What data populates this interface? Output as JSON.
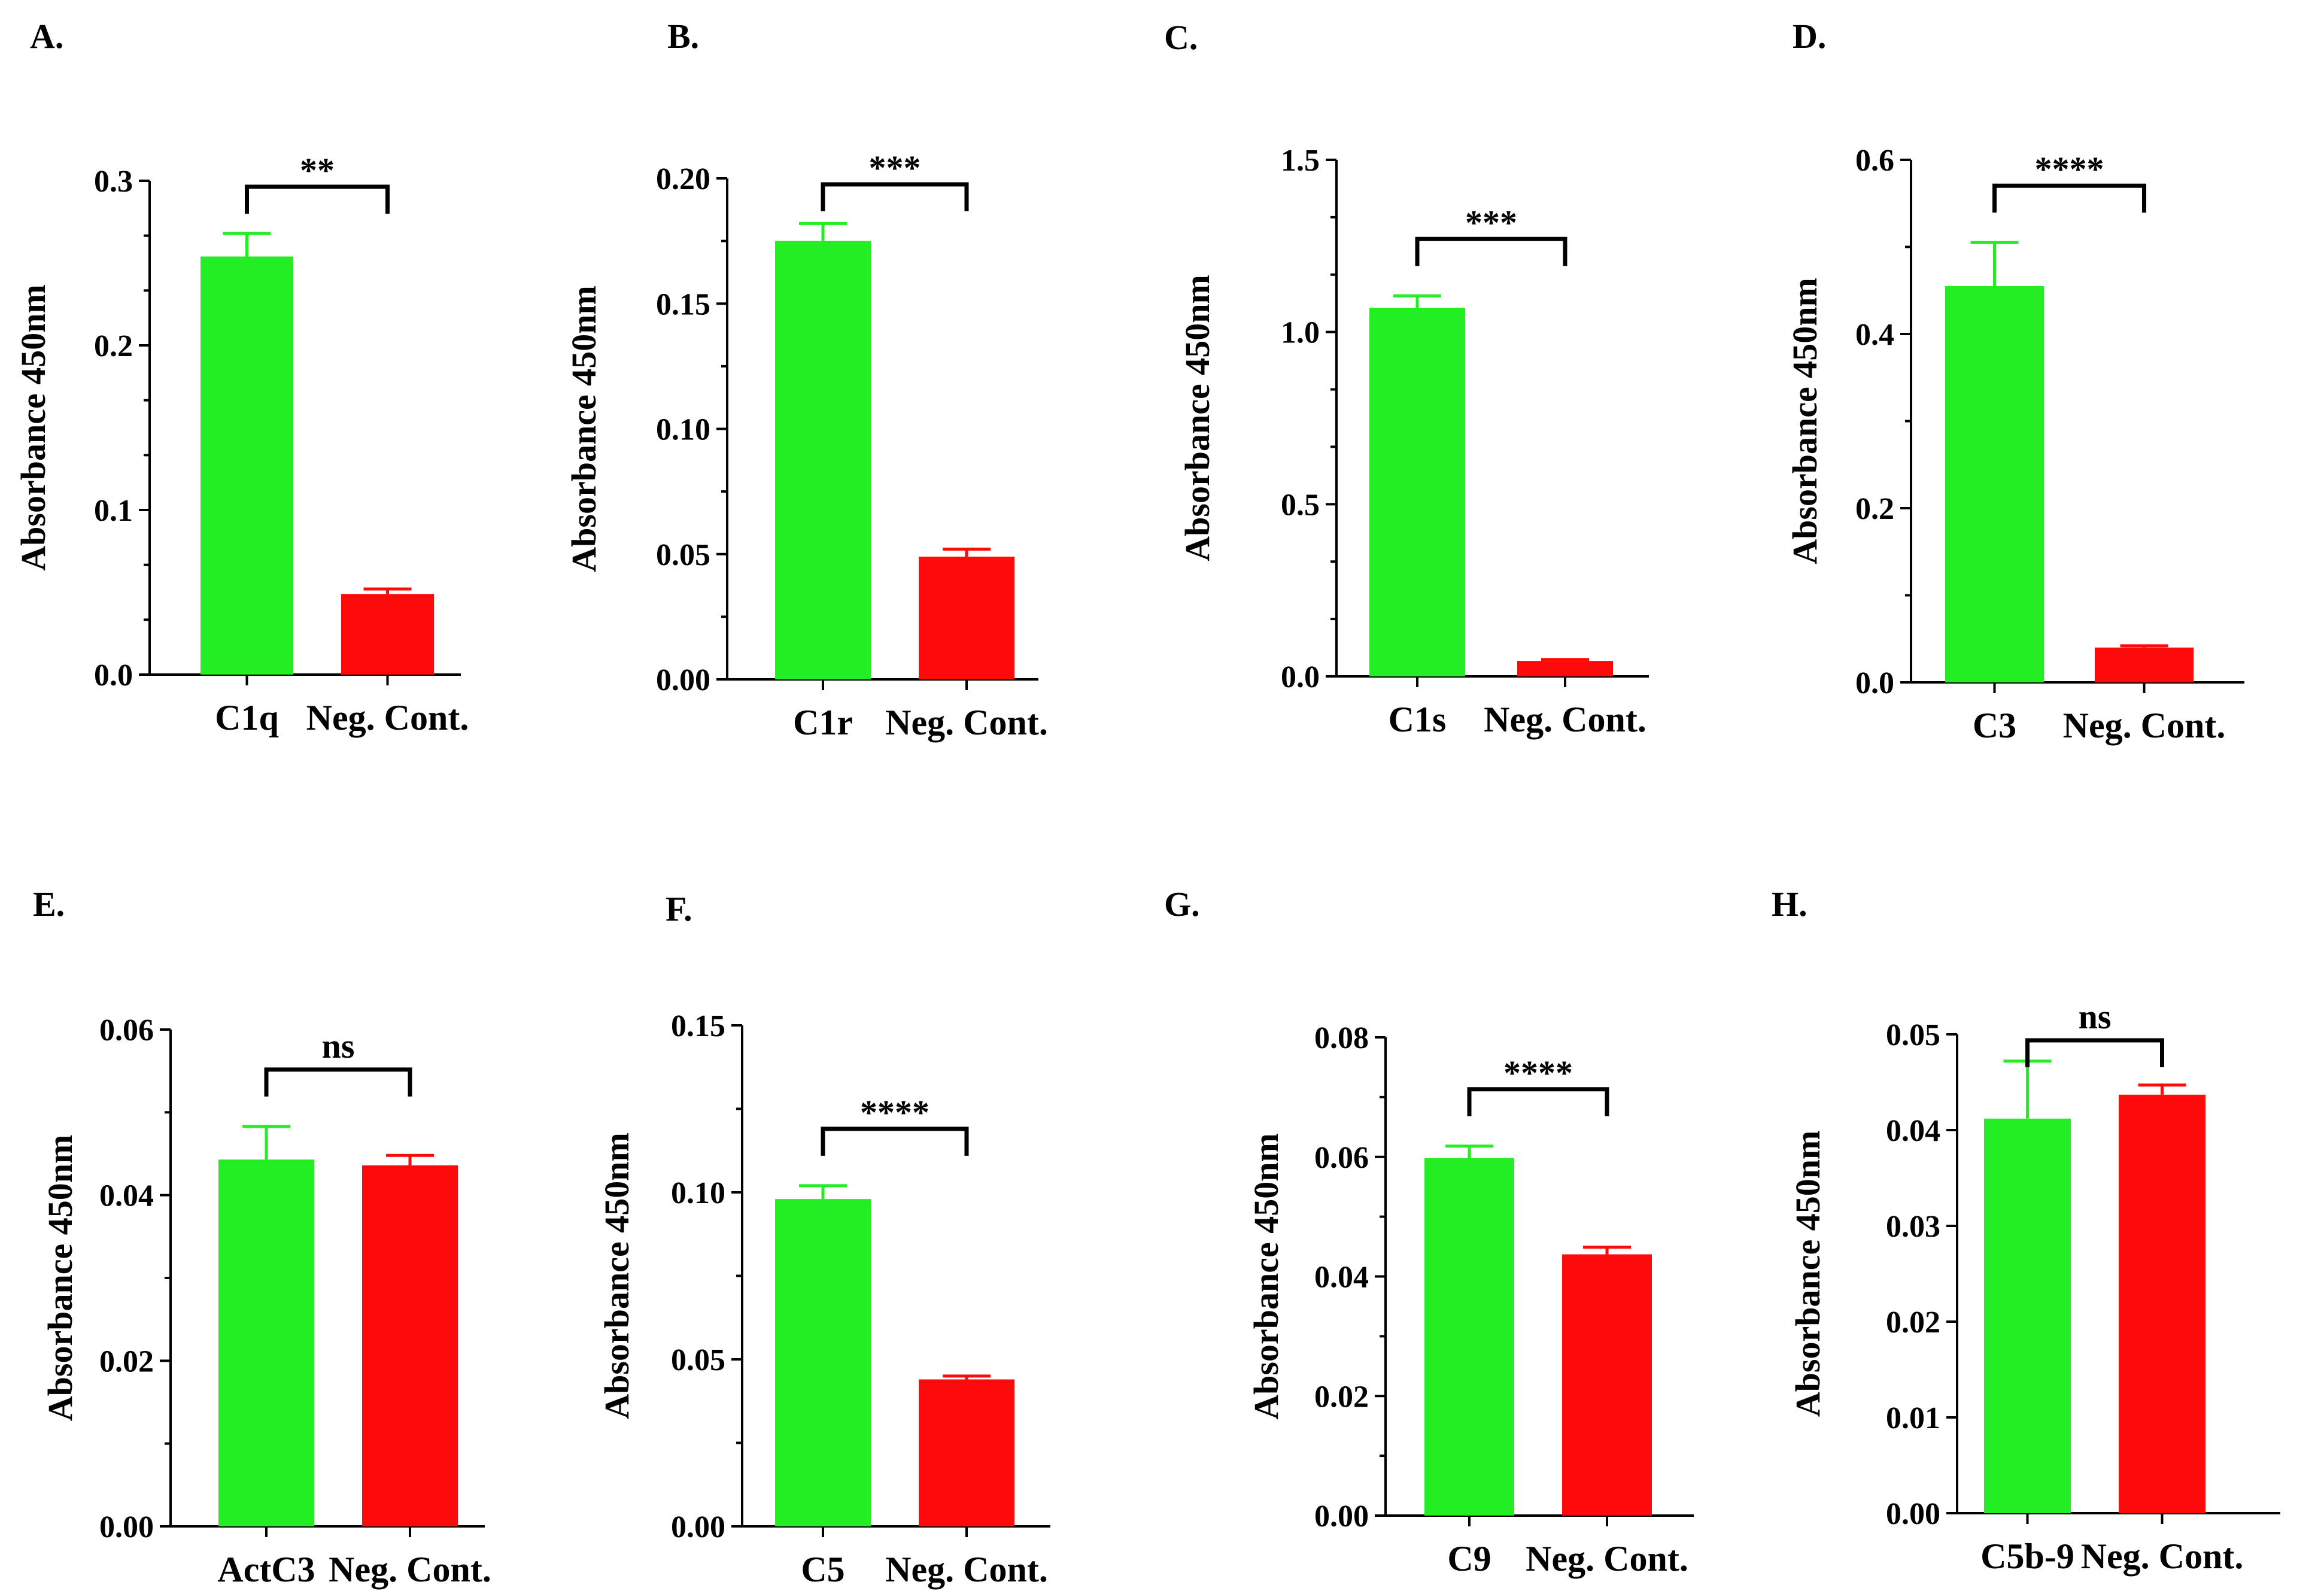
{
  "colors": {
    "treatment": "#22ee22",
    "control": "#ff0a0a",
    "axis": "#000000"
  },
  "chart_data": [
    {
      "panel": "A.",
      "type": "bar",
      "categories": [
        "C1q",
        "Neg. Cont."
      ],
      "values": [
        0.254,
        0.049
      ],
      "errors": [
        0.014,
        0.003
      ],
      "ylabel": "Absorbance 450nm",
      "ylim": [
        0,
        0.3
      ],
      "ticks": [
        "0.0",
        "0.1",
        "0.2",
        "0.3"
      ],
      "minor_ticks": 2,
      "significance": "**"
    },
    {
      "panel": "B.",
      "type": "bar",
      "categories": [
        "C1r",
        "Neg. Cont."
      ],
      "values": [
        0.175,
        0.049
      ],
      "errors": [
        0.007,
        0.003
      ],
      "ylabel": "Absorbance 450nm",
      "ylim": [
        0,
        0.2
      ],
      "ticks": [
        "0.00",
        "0.05",
        "0.10",
        "0.15",
        "0.20"
      ],
      "minor_ticks": 1,
      "significance": "***"
    },
    {
      "panel": "C.",
      "type": "bar",
      "categories": [
        "C1s",
        "Neg. Cont."
      ],
      "values": [
        1.07,
        0.045
      ],
      "errors": [
        0.035,
        0.004
      ],
      "ylabel": "Absorbance 450nm",
      "ylim": [
        0,
        1.5
      ],
      "ticks": [
        "0.0",
        "0.5",
        "1.0",
        "1.5"
      ],
      "minor_ticks": 2,
      "significance": "***"
    },
    {
      "panel": "D.",
      "type": "bar",
      "categories": [
        "C3",
        "Neg. Cont."
      ],
      "values": [
        0.455,
        0.04
      ],
      "errors": [
        0.05,
        0.002
      ],
      "ylabel": "Absorbance 450nm",
      "ylim": [
        0,
        0.6
      ],
      "ticks": [
        "0.0",
        "0.2",
        "0.4",
        "0.6"
      ],
      "minor_ticks": 1,
      "significance": "****"
    },
    {
      "panel": "E.",
      "type": "bar",
      "categories": [
        "ActC3",
        "Neg. Cont."
      ],
      "values": [
        0.0443,
        0.0436
      ],
      "errors": [
        0.004,
        0.0012
      ],
      "ylabel": "Absorbance 450nm",
      "ylim": [
        0,
        0.06
      ],
      "ticks": [
        "0.00",
        "0.02",
        "0.04",
        "0.06"
      ],
      "minor_ticks": 1,
      "significance": "ns"
    },
    {
      "panel": "F.",
      "type": "bar",
      "categories": [
        "C5",
        "Neg. Cont."
      ],
      "values": [
        0.098,
        0.044
      ],
      "errors": [
        0.004,
        0.001
      ],
      "ylabel": "Absorbance 450nm",
      "ylim": [
        0,
        0.15
      ],
      "ticks": [
        "0.00",
        "0.05",
        "0.10",
        "0.15"
      ],
      "minor_ticks": 1,
      "significance": "****"
    },
    {
      "panel": "G.",
      "type": "bar",
      "categories": [
        "C9",
        "Neg. Cont."
      ],
      "values": [
        0.0598,
        0.0437
      ],
      "errors": [
        0.002,
        0.0012
      ],
      "ylabel": "Absorbance 450nm",
      "ylim": [
        0,
        0.08
      ],
      "ticks": [
        "0.00",
        "0.02",
        "0.04",
        "0.06",
        "0.08"
      ],
      "minor_ticks": 1,
      "significance": "****"
    },
    {
      "panel": "H.",
      "type": "bar",
      "categories": [
        "C5b-9",
        "Neg. Cont."
      ],
      "values": [
        0.0412,
        0.0437
      ],
      "errors": [
        0.006,
        0.001
      ],
      "ylabel": "Absorbance 450nm",
      "ylim": [
        0,
        0.05
      ],
      "ticks": [
        "0.00",
        "0.01",
        "0.02",
        "0.03",
        "0.04",
        "0.05"
      ],
      "minor_ticks": 0,
      "significance": "ns"
    }
  ]
}
